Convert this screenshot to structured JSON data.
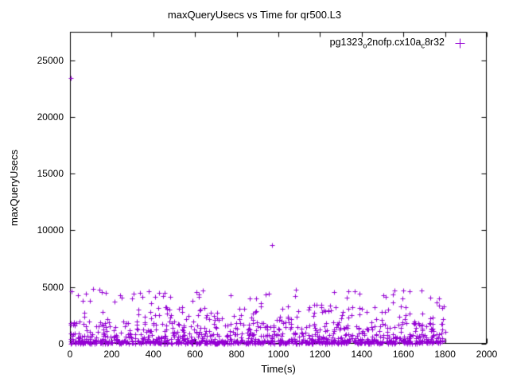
{
  "window": {
    "background": "#ffffff"
  },
  "chart_data": {
    "type": "scatter",
    "title": "maxQueryUsecs vs Time for qr500.L3",
    "xlabel": "Time(s)",
    "ylabel": "maxQueryUsecs",
    "xlim": [
      0,
      2000
    ],
    "ylim": [
      0,
      27500
    ],
    "x_ticks": [
      0,
      200,
      400,
      600,
      800,
      1000,
      1200,
      1400,
      1600,
      1800,
      2000
    ],
    "y_ticks": [
      0,
      5000,
      10000,
      15000,
      20000,
      25000
    ],
    "grid": false,
    "legend_position": "top-right-inside",
    "axis_color": "#000000",
    "text_color": "#000000",
    "marker": {
      "shape": "plus",
      "color": "#9400d3",
      "size": 7
    },
    "series": [
      {
        "name_plain": "pg1323o2nofp.cx10ac8r32",
        "name_parts": [
          {
            "t": "pg1323"
          },
          {
            "t": "o",
            "sub": true
          },
          {
            "t": "2nofp.cx10a"
          },
          {
            "t": "c",
            "sub": true
          },
          {
            "t": "8r32"
          }
        ],
        "outlier_points": [
          [
            3,
            23400
          ],
          [
            968,
            8700
          ],
          [
            112,
            4820
          ],
          [
            242,
            4300
          ],
          [
            1335,
            4600
          ],
          [
            1730,
            4100
          ],
          [
            620,
            4350
          ],
          [
            1080,
            4200
          ]
        ],
        "cloud_generator": {
          "seed": 1323,
          "n": 1150,
          "x_min": 2,
          "x_max": 1805,
          "y_bands": [
            {
              "weight": 0.45,
              "y_min": 0,
              "y_max": 300
            },
            {
              "weight": 0.25,
              "y_min": 300,
              "y_max": 900
            },
            {
              "weight": 0.17,
              "y_min": 900,
              "y_max": 2000
            },
            {
              "weight": 0.09,
              "y_min": 2000,
              "y_max": 3500
            },
            {
              "weight": 0.04,
              "y_min": 3500,
              "y_max": 4800
            }
          ]
        }
      }
    ]
  }
}
